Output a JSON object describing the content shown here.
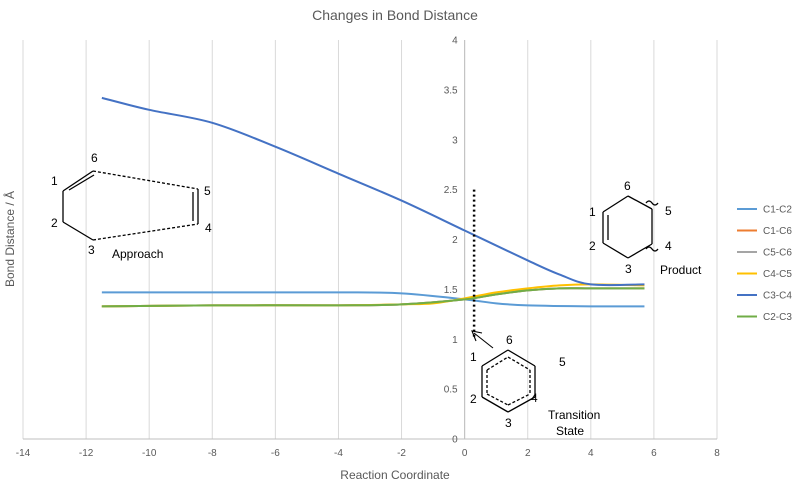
{
  "chart_data": {
    "type": "line",
    "title": "Changes in Bond Distance",
    "xlabel": "Reaction Coordinate",
    "ylabel": "Bond Distance / Å",
    "xlim": [
      -14,
      8
    ],
    "ylim": [
      0,
      4
    ],
    "x_ticks": [
      -14,
      -12,
      -10,
      -8,
      -6,
      -4,
      -2,
      0,
      2,
      4,
      6,
      8
    ],
    "y_ticks": [
      0,
      0.5,
      1,
      1.5,
      2,
      2.5,
      3,
      3.5,
      4
    ],
    "x_tick_labels": [
      "-14",
      "-12",
      "-10",
      "-8",
      "-6",
      "-4",
      "-2",
      "0",
      "2",
      "4",
      "6",
      "8"
    ],
    "y_tick_labels": [
      "0",
      "0.5",
      "1",
      "1.5",
      "2",
      "2.5",
      "3",
      "3.5",
      "4"
    ],
    "grid": "vertical",
    "legend_position": "right",
    "series": [
      {
        "name": "C1-C2",
        "color": "#5B9BD5",
        "x": [
          -11.5,
          -8,
          -4,
          -2,
          0,
          1,
          2,
          4,
          5.7
        ],
        "y": [
          1.47,
          1.47,
          1.47,
          1.46,
          1.4,
          1.36,
          1.34,
          1.33,
          1.33
        ]
      },
      {
        "name": "C1-C6",
        "color": "#ED7D31",
        "x": [
          -11.5,
          -8,
          -4,
          -2,
          0,
          1,
          2,
          3,
          4,
          5.7
        ],
        "y": [
          1.33,
          1.34,
          1.34,
          1.35,
          1.4,
          1.45,
          1.49,
          1.51,
          1.51,
          1.51
        ]
      },
      {
        "name": "C5-C6",
        "color": "#A5A5A5",
        "x": [
          -11.5,
          -8,
          -4,
          -2,
          0,
          1,
          2,
          3,
          4,
          5.7
        ],
        "y": [
          1.33,
          1.34,
          1.34,
          1.35,
          1.4,
          1.45,
          1.49,
          1.51,
          1.51,
          1.51
        ]
      },
      {
        "name": "C4-C5",
        "color": "#FFC000",
        "x": [
          -11.5,
          -8,
          -4,
          -2,
          -1,
          0,
          1,
          2,
          3,
          4,
          5.7
        ],
        "y": [
          1.33,
          1.34,
          1.34,
          1.35,
          1.36,
          1.41,
          1.47,
          1.51,
          1.54,
          1.55,
          1.54
        ]
      },
      {
        "name": "C3-C4",
        "color": "#4472C4",
        "x": [
          -11.5,
          -10,
          -8,
          -6,
          -4,
          -2,
          0,
          2,
          3,
          4,
          5.7
        ],
        "y": [
          3.42,
          3.3,
          3.17,
          2.93,
          2.66,
          2.39,
          2.09,
          1.79,
          1.65,
          1.55,
          1.55
        ]
      },
      {
        "name": "C2-C3",
        "color": "#70AD47",
        "x": [
          -11.5,
          -8,
          -4,
          -2,
          0,
          1,
          2,
          3,
          4,
          5.7
        ],
        "y": [
          1.33,
          1.34,
          1.34,
          1.35,
          1.4,
          1.45,
          1.49,
          1.51,
          1.51,
          1.51
        ]
      }
    ],
    "annotations": {
      "ts_marker_x": 0.3,
      "ts_marker_y": [
        1.0,
        2.5
      ],
      "approach_label": "Approach",
      "product_label": "Product",
      "transition_label_1": "Transition",
      "transition_label_2": "State",
      "approach_numbers": [
        "1",
        "2",
        "3",
        "4",
        "5",
        "6"
      ],
      "product_numbers": [
        "1",
        "2",
        "3",
        "4",
        "5",
        "6"
      ],
      "ts_numbers": [
        "1",
        "2",
        "3",
        "4",
        "5",
        "6"
      ]
    }
  }
}
